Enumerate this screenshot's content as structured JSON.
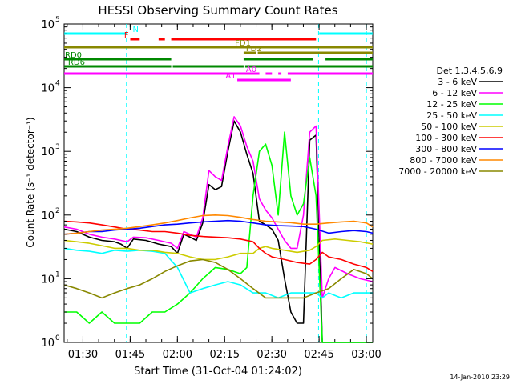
{
  "chart_data": {
    "type": "line",
    "title": "HESSI Observing Summary Count Rates",
    "xlabel": "Start Time (31-Oct-04 01:24:02)",
    "ylabel": "Count Rate (s⁻¹ detector⁻¹)",
    "ylog": true,
    "ylim": [
      1,
      100000
    ],
    "xlim_minutes": [
      0,
      98
    ],
    "x_ticks": [
      "01:30",
      "01:45",
      "02:00",
      "02:15",
      "02:30",
      "02:45",
      "03:00"
    ],
    "x_tick_minutes": [
      5.97,
      20.97,
      35.97,
      50.97,
      65.97,
      80.97,
      95.97
    ],
    "y_ticks": [
      {
        "value": 1,
        "label": "10",
        "exp": "0"
      },
      {
        "value": 10,
        "label": "10",
        "exp": "1"
      },
      {
        "value": 100,
        "label": "10",
        "exp": "2"
      },
      {
        "value": 1000,
        "label": "10",
        "exp": "3"
      },
      {
        "value": 10000,
        "label": "10",
        "exp": "4"
      },
      {
        "value": 100000,
        "label": "10",
        "exp": "5"
      }
    ],
    "legend_title": "Det 1,3,4,5,6,9",
    "legend_position": "right",
    "series": [
      {
        "name": "3 - 6 keV",
        "color": "#000000",
        "x": [
          0,
          4,
          8,
          12,
          16,
          18,
          20,
          22,
          26,
          30,
          34,
          36,
          38,
          40,
          42,
          44,
          46,
          48,
          50,
          52,
          54,
          56,
          58,
          60,
          62,
          64,
          66,
          68,
          70,
          72,
          74,
          76,
          78,
          80,
          82,
          86,
          90,
          94,
          98
        ],
        "y": [
          60,
          55,
          45,
          40,
          38,
          35,
          30,
          42,
          40,
          35,
          32,
          25,
          50,
          45,
          40,
          75,
          300,
          250,
          280,
          1000,
          3000,
          2000,
          900,
          450,
          80,
          70,
          60,
          40,
          10,
          3,
          2,
          2,
          1500,
          1800,
          1,
          1,
          1,
          1,
          1
        ]
      },
      {
        "name": "6 - 12 keV",
        "color": "#ff00ff",
        "x": [
          0,
          4,
          8,
          12,
          16,
          18,
          20,
          22,
          26,
          30,
          34,
          36,
          38,
          40,
          42,
          44,
          46,
          48,
          50,
          52,
          54,
          56,
          58,
          60,
          62,
          64,
          66,
          68,
          70,
          72,
          74,
          76,
          78,
          80,
          82,
          84,
          86,
          90,
          94,
          98
        ],
        "y": [
          65,
          60,
          50,
          45,
          42,
          40,
          38,
          45,
          44,
          40,
          36,
          30,
          55,
          50,
          45,
          90,
          500,
          400,
          350,
          1200,
          3500,
          2500,
          1200,
          700,
          180,
          120,
          90,
          60,
          40,
          30,
          30,
          100,
          2000,
          2500,
          5,
          10,
          15,
          12,
          10,
          9
        ]
      },
      {
        "name": "12 - 25 keV",
        "color": "#00ff00",
        "x": [
          0,
          4,
          8,
          12,
          16,
          20,
          24,
          28,
          32,
          36,
          40,
          44,
          48,
          52,
          56,
          58,
          60,
          62,
          64,
          66,
          68,
          70,
          72,
          74,
          76,
          78,
          80,
          82,
          84,
          86,
          90,
          94,
          98
        ],
        "y": [
          3,
          3,
          2,
          3,
          2,
          2,
          2,
          3,
          3,
          4,
          6,
          10,
          15,
          14,
          12,
          15,
          200,
          1000,
          1300,
          600,
          100,
          2000,
          200,
          100,
          150,
          800,
          200,
          1,
          1,
          1,
          1,
          1,
          1
        ]
      },
      {
        "name": "25 - 50 keV",
        "color": "#00ffff",
        "x": [
          0,
          4,
          8,
          12,
          16,
          20,
          24,
          28,
          32,
          36,
          40,
          44,
          48,
          52,
          56,
          60,
          64,
          68,
          72,
          76,
          80,
          82,
          84,
          88,
          92,
          96,
          98
        ],
        "y": [
          30,
          28,
          27,
          25,
          28,
          27,
          28,
          27,
          25,
          15,
          6,
          7,
          8,
          9,
          8,
          6,
          6,
          5,
          6,
          6,
          6,
          5,
          6,
          5,
          6,
          6,
          6
        ]
      },
      {
        "name": "50 - 100 keV",
        "color": "#cccc00",
        "x": [
          0,
          4,
          8,
          12,
          16,
          20,
          24,
          28,
          32,
          36,
          40,
          44,
          48,
          52,
          56,
          60,
          62,
          64,
          66,
          70,
          74,
          78,
          80,
          82,
          86,
          90,
          94,
          98
        ],
        "y": [
          40,
          38,
          36,
          33,
          30,
          30,
          28,
          28,
          26,
          25,
          22,
          20,
          20,
          22,
          25,
          25,
          30,
          32,
          30,
          28,
          26,
          28,
          32,
          40,
          42,
          40,
          38,
          35
        ]
      },
      {
        "name": "100 - 300 keV",
        "color": "#ff0000",
        "x": [
          0,
          4,
          8,
          12,
          16,
          20,
          24,
          28,
          32,
          36,
          40,
          44,
          48,
          52,
          56,
          60,
          62,
          64,
          66,
          70,
          74,
          78,
          80,
          82,
          84,
          88,
          92,
          96,
          98
        ],
        "y": [
          80,
          78,
          75,
          70,
          65,
          60,
          58,
          55,
          55,
          52,
          48,
          46,
          45,
          44,
          42,
          38,
          30,
          25,
          22,
          20,
          18,
          17,
          20,
          26,
          22,
          20,
          17,
          15,
          13
        ]
      },
      {
        "name": "300 - 800 keV",
        "color": "#0000ff",
        "x": [
          0,
          4,
          8,
          12,
          16,
          20,
          24,
          28,
          32,
          36,
          40,
          44,
          48,
          52,
          56,
          60,
          64,
          68,
          72,
          76,
          80,
          84,
          88,
          92,
          96,
          98
        ],
        "y": [
          50,
          52,
          55,
          55,
          58,
          60,
          62,
          66,
          70,
          72,
          75,
          78,
          80,
          82,
          80,
          75,
          70,
          68,
          67,
          66,
          60,
          52,
          55,
          57,
          55,
          52
        ]
      },
      {
        "name": "800 - 7000 keV",
        "color": "#ff8800",
        "x": [
          0,
          4,
          8,
          12,
          16,
          20,
          24,
          28,
          32,
          36,
          40,
          44,
          48,
          52,
          56,
          60,
          64,
          68,
          72,
          76,
          80,
          84,
          88,
          92,
          96,
          98
        ],
        "y": [
          50,
          52,
          55,
          58,
          60,
          62,
          66,
          70,
          75,
          82,
          90,
          98,
          100,
          98,
          92,
          85,
          80,
          78,
          76,
          72,
          72,
          75,
          78,
          80,
          75,
          65
        ]
      },
      {
        "name": "7000 - 20000 keV",
        "color": "#888800",
        "x": [
          0,
          4,
          8,
          12,
          16,
          20,
          24,
          28,
          32,
          36,
          40,
          44,
          48,
          52,
          56,
          60,
          64,
          68,
          72,
          76,
          80,
          84,
          88,
          92,
          96,
          98
        ],
        "y": [
          8,
          7,
          6,
          5,
          6,
          7,
          8,
          10,
          13,
          16,
          19,
          20,
          18,
          14,
          10,
          7,
          5,
          5,
          5,
          5,
          6,
          7,
          10,
          14,
          12,
          10
        ]
      }
    ],
    "flag_bars": [
      {
        "label": "N",
        "color": "#00ffff",
        "label_min": 21.5,
        "segments": [
          [
            0,
            20
          ],
          [
            81,
            98
          ]
        ]
      },
      {
        "label": "F",
        "color": "#ff0000",
        "label_min": 18.8,
        "segments": [
          [
            21,
            24
          ],
          [
            30,
            32
          ],
          [
            34,
            80
          ]
        ]
      },
      {
        "label": "FD1",
        "color": "#888800",
        "label_min": 54,
        "segments": [
          [
            0,
            98
          ]
        ]
      },
      {
        "label": "FD2",
        "color": "#888800",
        "label_min": 57.5,
        "segments": [
          [
            57,
            61
          ],
          [
            61.5,
            98
          ]
        ]
      },
      {
        "label": "RD0",
        "color": "#008800",
        "label_min": 0,
        "segments": [
          [
            0,
            34
          ],
          [
            57,
            79
          ],
          [
            83,
            98
          ]
        ]
      },
      {
        "label": "RD6",
        "color": "#008800",
        "label_min": 1,
        "segments": [
          [
            0,
            34
          ],
          [
            34.5,
            57
          ],
          [
            57.5,
            98
          ]
        ]
      },
      {
        "label": "A0",
        "color": "#ff00ff",
        "label_min": 57.5,
        "segments": [
          [
            0,
            62
          ],
          [
            64,
            66
          ],
          [
            68,
            69
          ],
          [
            71,
            98
          ]
        ]
      },
      {
        "label": "A1",
        "color": "#ff00ff",
        "label_min": 51,
        "segments": [
          [
            55,
            72
          ]
        ]
      }
    ],
    "vlines": [
      {
        "color": "#00ffff",
        "minute": 19.8
      },
      {
        "color": "#00ffff",
        "minute": 80.8
      },
      {
        "color": "#00ffff",
        "minute": 96.0
      }
    ]
  },
  "timestamp": "14-Jan-2010 23:29"
}
